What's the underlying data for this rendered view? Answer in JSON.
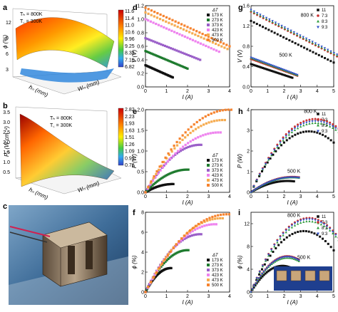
{
  "panel_letters": {
    "a": "a",
    "b": "b",
    "c": "c",
    "d": "d",
    "e": "e",
    "f": "f",
    "g": "g",
    "h": "h",
    "i": "i"
  },
  "panel_a": {
    "zlabel": "ϕ (%)",
    "annot1": "Tₕ = 800K",
    "annot2": "T꜀ = 300K",
    "zticks": [
      "3",
      "6",
      "9",
      "12"
    ],
    "colorbar": [
      "11.6",
      "11.4",
      "11.0",
      "10.6",
      "9.96",
      "9.25",
      "8.34",
      "7.10",
      "6.82"
    ],
    "xlabel": "hₙ (mm)",
    "ylabel": "Wₙ (mm)"
  },
  "panel_b": {
    "zlabel": "Pₐ (W cm⁻²)",
    "annot1": "Tₕ = 800K",
    "annot2": "T꜀ = 300K",
    "zticks": [
      "0.5",
      "1.0",
      "1.5",
      "2.0",
      "2.5",
      "3.0",
      "3.5"
    ],
    "colorbar": [
      "2.82",
      "2.23",
      "1.93",
      "1.63",
      "1.51",
      "1.26",
      "1.09",
      "0.91",
      "0.76"
    ],
    "xlabel": "hₙ (mm)",
    "ylabel": "Wₙ (mm)"
  },
  "colors": {
    "dT": [
      "#111111",
      "#1e7b2e",
      "#9a5fc8",
      "#ee82ee",
      "#f6ab4f",
      "#f6832e"
    ],
    "ratio": [
      "#111111",
      "#c83232",
      "#2d9b3a",
      "#3050c8"
    ]
  },
  "chart_data": [
    {
      "panel": "d",
      "type": "line",
      "xlabel": "I (A)",
      "ylabel": "V (V)",
      "xlim": [
        0,
        4
      ],
      "ylim": [
        0,
        1.2
      ],
      "xticks": [
        "0",
        "1",
        "2",
        "3",
        "4"
      ],
      "yticks": [
        "0.0",
        "0.2",
        "0.4",
        "0.6",
        "0.8",
        "1.0",
        "1.2"
      ],
      "legend_title": "ΔT",
      "series": [
        {
          "name": "173 K",
          "x": [
            0,
            1.3
          ],
          "y": [
            0.32,
            0.14
          ]
        },
        {
          "name": "273 K",
          "x": [
            0,
            2.0
          ],
          "y": [
            0.53,
            0.27
          ]
        },
        {
          "name": "373 K",
          "x": [
            0,
            2.6
          ],
          "y": [
            0.72,
            0.4
          ]
        },
        {
          "name": "423 K",
          "x": [
            0,
            3.5
          ],
          "y": [
            1.0,
            0.52
          ]
        },
        {
          "name": "473 K",
          "x": [
            0,
            3.9
          ],
          "y": [
            1.1,
            0.56
          ]
        },
        {
          "name": "500 K",
          "x": [
            0,
            4.0
          ],
          "y": [
            1.17,
            0.6
          ]
        }
      ]
    },
    {
      "panel": "e",
      "type": "line",
      "xlabel": "I (A)",
      "ylabel": "P (W)",
      "xlim": [
        0,
        4
      ],
      "ylim": [
        0,
        2.0
      ],
      "xticks": [
        "0",
        "1",
        "2",
        "3",
        "4"
      ],
      "yticks": [
        "0.0",
        "0.5",
        "1.0",
        "1.5",
        "2.0"
      ],
      "legend_title": "ΔT",
      "series": [
        {
          "name": "173 K",
          "peak_x": 1.3,
          "peak_y": 0.2
        },
        {
          "name": "273 K",
          "peak_x": 2.0,
          "peak_y": 0.55
        },
        {
          "name": "373 K",
          "peak_x": 2.6,
          "peak_y": 1.15
        },
        {
          "name": "423 K",
          "peak_x": 3.5,
          "peak_y": 1.45
        },
        {
          "name": "473 K",
          "peak_x": 3.7,
          "peak_y": 1.75
        },
        {
          "name": "500 K",
          "peak_x": 4.0,
          "peak_y": 2.0
        }
      ]
    },
    {
      "panel": "f",
      "type": "line",
      "xlabel": "I (A)",
      "ylabel": "ϕ (%)",
      "xlim": [
        0,
        4
      ],
      "ylim": [
        0,
        8
      ],
      "xticks": [
        "0",
        "1",
        "2",
        "3",
        "4"
      ],
      "yticks": [
        "0",
        "2",
        "4",
        "6",
        "8"
      ],
      "legend_title": "ΔT",
      "series": [
        {
          "name": "173 K",
          "peak_x": 1.2,
          "peak_y": 2.4
        },
        {
          "name": "273 K",
          "peak_x": 2.0,
          "peak_y": 4.2
        },
        {
          "name": "373 K",
          "peak_x": 2.6,
          "peak_y": 5.8
        },
        {
          "name": "423 K",
          "peak_x": 3.3,
          "peak_y": 6.8
        },
        {
          "name": "473 K",
          "peak_x": 3.6,
          "peak_y": 7.4
        },
        {
          "name": "500 K",
          "peak_x": 3.9,
          "peak_y": 7.8
        }
      ]
    },
    {
      "panel": "g",
      "type": "line",
      "xlabel": "I (A)",
      "ylabel": "V (V)",
      "xlim": [
        0,
        5
      ],
      "ylim": [
        0,
        1.6
      ],
      "xticks": [
        "0",
        "1",
        "2",
        "3",
        "4",
        "5"
      ],
      "yticks": [
        "0.0",
        "0.4",
        "0.8",
        "1.2",
        "1.6"
      ],
      "annotations": [
        "800 K",
        "500 K"
      ],
      "series": [
        {
          "name": "11",
          "group": "800 K",
          "x": [
            0,
            5.0
          ],
          "y": [
            1.3,
            0.48
          ]
        },
        {
          "name": "7:3",
          "group": "800 K",
          "x": [
            0,
            5.2
          ],
          "y": [
            1.48,
            0.6
          ]
        },
        {
          "name": "8:3",
          "group": "800 K",
          "x": [
            0,
            5.2
          ],
          "y": [
            1.5,
            0.62
          ]
        },
        {
          "name": "9:3",
          "group": "800 K",
          "x": [
            0,
            5.2
          ],
          "y": [
            1.52,
            0.64
          ]
        },
        {
          "name": "11",
          "group": "500 K",
          "x": [
            0,
            2.5
          ],
          "y": [
            0.45,
            0.18
          ]
        },
        {
          "name": "7:3",
          "group": "500 K",
          "x": [
            0,
            2.8
          ],
          "y": [
            0.55,
            0.22
          ]
        },
        {
          "name": "8:3",
          "group": "500 K",
          "x": [
            0,
            2.8
          ],
          "y": [
            0.57,
            0.23
          ]
        },
        {
          "name": "9:3",
          "group": "500 K",
          "x": [
            0,
            2.8
          ],
          "y": [
            0.58,
            0.24
          ]
        }
      ]
    },
    {
      "panel": "h",
      "type": "scatter",
      "xlabel": "I (A)",
      "ylabel": "P (W)",
      "xlim": [
        0,
        5
      ],
      "ylim": [
        0,
        4
      ],
      "xticks": [
        "0",
        "1",
        "2",
        "3",
        "4",
        "5"
      ],
      "yticks": [
        "0",
        "1",
        "2",
        "3",
        "4"
      ],
      "annotations": [
        "800 K",
        "500 K"
      ],
      "series": [
        {
          "name": "11",
          "group": "800 K",
          "peak_x": 3.5,
          "peak_y": 2.95,
          "xmax": 5.0
        },
        {
          "name": "7:3",
          "group": "800 K",
          "peak_x": 3.9,
          "peak_y": 3.55,
          "xmax": 5.3
        },
        {
          "name": "8:3",
          "group": "800 K",
          "peak_x": 3.9,
          "peak_y": 3.35,
          "xmax": 5.3
        },
        {
          "name": "9:3",
          "group": "800 K",
          "peak_x": 3.9,
          "peak_y": 3.45,
          "xmax": 5.3
        },
        {
          "name": "11",
          "group": "500 K",
          "peak_x": 2.2,
          "peak_y": 0.55,
          "xmax": 2.6
        },
        {
          "name": "7:3",
          "group": "500 K",
          "peak_x": 2.5,
          "peak_y": 0.75,
          "xmax": 2.9
        },
        {
          "name": "8:3",
          "group": "500 K",
          "peak_x": 2.5,
          "peak_y": 0.72,
          "xmax": 2.9
        },
        {
          "name": "9:3",
          "group": "500 K",
          "peak_x": 2.5,
          "peak_y": 0.73,
          "xmax": 2.9
        }
      ]
    },
    {
      "panel": "i",
      "type": "scatter",
      "xlabel": "I (A)",
      "ylabel": "ϕ (%)",
      "xlim": [
        0,
        5
      ],
      "ylim": [
        0,
        14
      ],
      "xticks": [
        "0",
        "1",
        "2",
        "3",
        "4",
        "5"
      ],
      "yticks": [
        "0",
        "4",
        "8",
        "12"
      ],
      "annotations": [
        "800 K",
        "500 K"
      ],
      "series": [
        {
          "name": "11",
          "group": "800 K",
          "peak_x": 3.2,
          "peak_y": 10.7,
          "xmax": 5.0
        },
        {
          "name": "7:3",
          "group": "800 K",
          "peak_x": 3.5,
          "peak_y": 13.0,
          "xmax": 5.3
        },
        {
          "name": "8:3",
          "group": "800 K",
          "peak_x": 3.5,
          "peak_y": 12.4,
          "xmax": 5.3
        },
        {
          "name": "9:3",
          "group": "800 K",
          "peak_x": 3.5,
          "peak_y": 12.8,
          "xmax": 5.3
        },
        {
          "name": "11",
          "group": "500 K",
          "peak_x": 1.9,
          "peak_y": 4.6,
          "xmax": 2.6
        },
        {
          "name": "7:3",
          "group": "500 K",
          "peak_x": 2.2,
          "peak_y": 6.3,
          "xmax": 2.9
        },
        {
          "name": "8:3",
          "group": "500 K",
          "peak_x": 2.2,
          "peak_y": 6.0,
          "xmax": 2.9
        },
        {
          "name": "9:3",
          "group": "500 K",
          "peak_x": 2.2,
          "peak_y": 6.2,
          "xmax": 2.9
        }
      ]
    }
  ]
}
